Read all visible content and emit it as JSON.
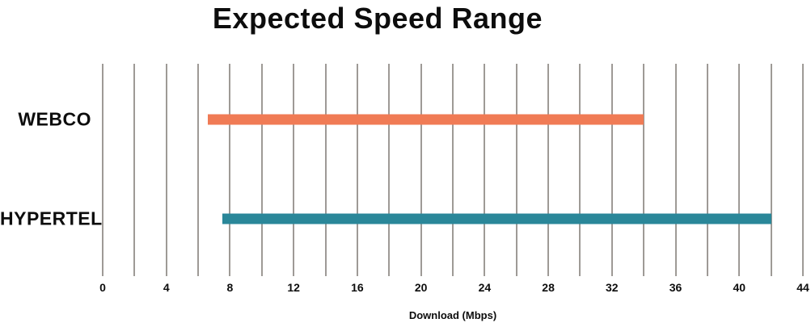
{
  "page": {
    "background": "#ffffff"
  },
  "chart_data": {
    "type": "bar",
    "orientation": "horizontal-range",
    "title": "Expected Speed Range",
    "categories": [
      "WEBCO",
      "HYPERTEL"
    ],
    "series": [
      {
        "name": "WEBCO",
        "range": [
          6.6,
          34
        ],
        "color": "#f07b55"
      },
      {
        "name": "HYPERTEL",
        "range": [
          7.5,
          42
        ],
        "color": "#2a8799"
      }
    ],
    "xlabel": "Download (Mbps)",
    "xlim": [
      0,
      44
    ],
    "xticks": [
      0,
      4,
      8,
      12,
      16,
      20,
      24,
      28,
      32,
      36,
      40,
      44
    ],
    "grid_step": 2,
    "grid_on": true,
    "legend": "none",
    "grid_color": "#9e9a96",
    "text_color": "#0d0d0d"
  }
}
